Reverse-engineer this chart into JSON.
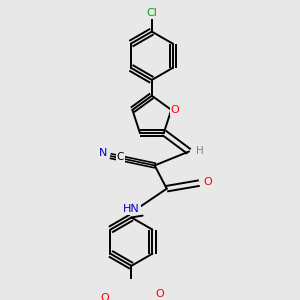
{
  "bg_color": "#e8e8e8",
  "bond_color": "#000000",
  "atom_colors": {
    "O": "#ff0000",
    "N": "#0000cc",
    "Cl": "#00aa00",
    "C": "#000000",
    "H": "#808080"
  }
}
